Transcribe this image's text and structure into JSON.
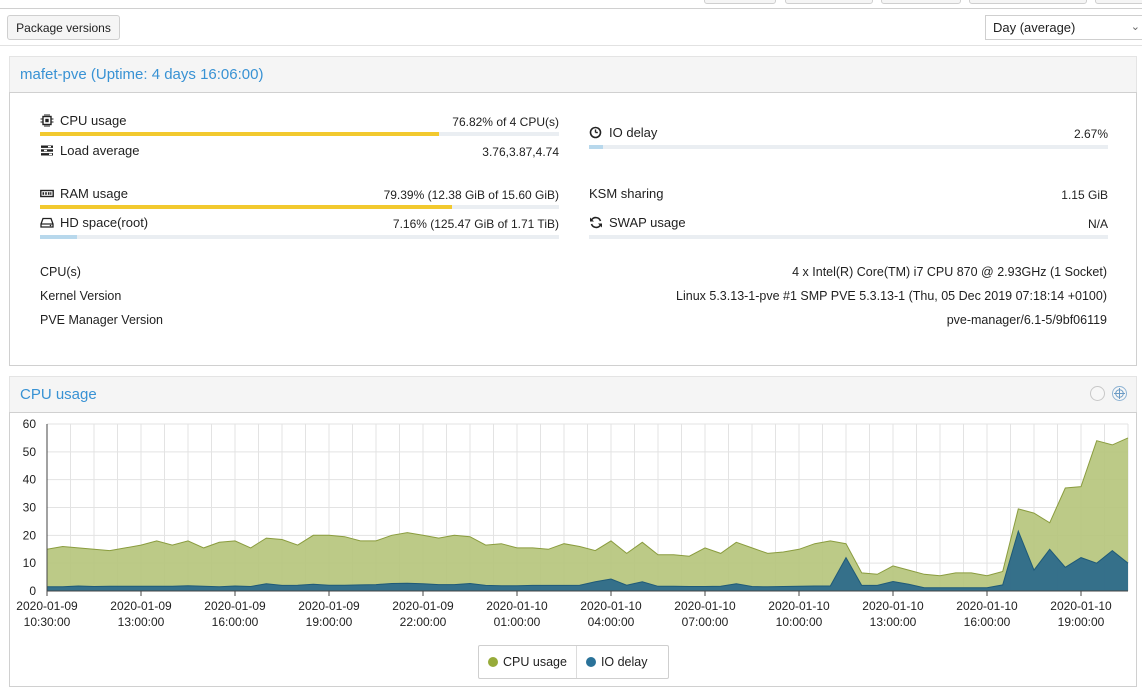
{
  "toolbar": {
    "package_versions_label": "Package versions",
    "timeframe_value": "Day (average)"
  },
  "summary": {
    "title": "mafet-pve (Uptime: 4 days 16:06:00)",
    "cpu": {
      "label": "CPU usage",
      "value": "76.82% of 4 CPU(s)",
      "fraction": 0.7682
    },
    "load": {
      "label": "Load average",
      "value": "3.76,3.87,4.74"
    },
    "io": {
      "label": "IO delay",
      "value": "2.67%",
      "fraction": 0.0267
    },
    "ram": {
      "label": "RAM usage",
      "value": "79.39% (12.38 GiB of 15.60 GiB)",
      "fraction": 0.7939
    },
    "ksm": {
      "label": "KSM sharing",
      "value": "1.15 GiB"
    },
    "hd": {
      "label": "HD space(root)",
      "value": "7.16% (125.47 GiB of 1.71 TiB)",
      "fraction": 0.0716
    },
    "swap": {
      "label": "SWAP usage",
      "value": "N/A",
      "fraction": 0
    },
    "info": [
      {
        "label": "CPU(s)",
        "value": "4 x Intel(R) Core(TM) i7 CPU 870 @ 2.93GHz (1 Socket)"
      },
      {
        "label": "Kernel Version",
        "value": "Linux 5.3.13-1-pve #1 SMP PVE 5.3.13-1 (Thu, 05 Dec 2019 07:18:14 +0100)"
      },
      {
        "label": "PVE Manager Version",
        "value": "pve-manager/6.1-5/9bf06119"
      }
    ]
  },
  "cpu_chart_panel": {
    "title": "CPU usage"
  },
  "colors": {
    "accent": "#3892d4",
    "bar": "#f2c92e",
    "bar_low": "#b8d8ec",
    "cpu_area": "#b5c47a",
    "io_area": "#2d6a8a"
  },
  "icons": {
    "cpu": "cpu-chip-icon",
    "load": "tasks-icon",
    "io": "clock-icon",
    "ram": "memory-icon",
    "hd": "hdd-icon",
    "swap": "refresh-icon",
    "zoom_reset": "undo-zoom-icon",
    "expand": "crosshair-icon"
  },
  "chart_data": {
    "type": "area",
    "ylim": [
      0,
      60
    ],
    "yticks": [
      0,
      10,
      20,
      30,
      40,
      50,
      60
    ],
    "x_tick_labels": [
      [
        "2020-01-09",
        "10:30:00"
      ],
      [
        "2020-01-09",
        "13:00:00"
      ],
      [
        "2020-01-09",
        "16:00:00"
      ],
      [
        "2020-01-09",
        "19:00:00"
      ],
      [
        "2020-01-09",
        "22:00:00"
      ],
      [
        "2020-01-10",
        "01:00:00"
      ],
      [
        "2020-01-10",
        "04:00:00"
      ],
      [
        "2020-01-10",
        "07:00:00"
      ],
      [
        "2020-01-10",
        "10:00:00"
      ],
      [
        "2020-01-10",
        "13:00:00"
      ],
      [
        "2020-01-10",
        "16:00:00"
      ],
      [
        "2020-01-10",
        "19:00:00"
      ]
    ],
    "series": [
      {
        "name": "CPU usage",
        "color": "#97ab3a",
        "values": [
          15,
          16,
          15.5,
          15,
          14.5,
          15.5,
          16.5,
          18,
          16.5,
          18,
          15.5,
          17.5,
          18,
          15.5,
          19,
          18.5,
          16.5,
          20,
          20,
          19.5,
          18,
          18,
          20,
          21,
          20,
          19,
          20,
          19.5,
          16.5,
          17,
          15.5,
          15.5,
          15,
          17,
          16,
          14.5,
          18,
          13.5,
          17.5,
          13,
          13,
          12.5,
          15.5,
          13.5,
          17.5,
          15.5,
          13.5,
          14,
          15,
          17,
          18,
          17,
          6.5,
          6,
          9,
          7.5,
          6,
          5.5,
          6.5,
          6.5,
          5.5,
          7,
          29.5,
          28,
          24.5,
          37,
          37.5,
          54,
          52.5,
          55
        ]
      },
      {
        "name": "IO delay",
        "color": "#2a7299",
        "values": [
          1.5,
          1.5,
          1.8,
          1.6,
          1.7,
          1.7,
          1.7,
          1.7,
          1.7,
          1.9,
          1.7,
          1.5,
          1.8,
          1.6,
          2.6,
          2,
          2.1,
          2.4,
          2.1,
          2.1,
          2.2,
          2.3,
          2.7,
          2.8,
          2.6,
          2.3,
          2.3,
          2.7,
          2,
          1.9,
          1.9,
          2,
          2,
          2,
          2.1,
          3.3,
          4.3,
          2.1,
          3.3,
          1.7,
          1.7,
          1.6,
          1.6,
          1.7,
          2.6,
          1.6,
          1.5,
          1.6,
          1.7,
          1.8,
          1.8,
          12,
          2,
          2,
          3.4,
          2.4,
          1.2,
          1.2,
          1.2,
          1.2,
          1.2,
          2.2,
          21.5,
          7.5,
          15,
          8.5,
          12,
          10,
          14.5,
          10
        ]
      }
    ]
  },
  "legend": {
    "cpu": "CPU usage",
    "io": "IO delay"
  }
}
